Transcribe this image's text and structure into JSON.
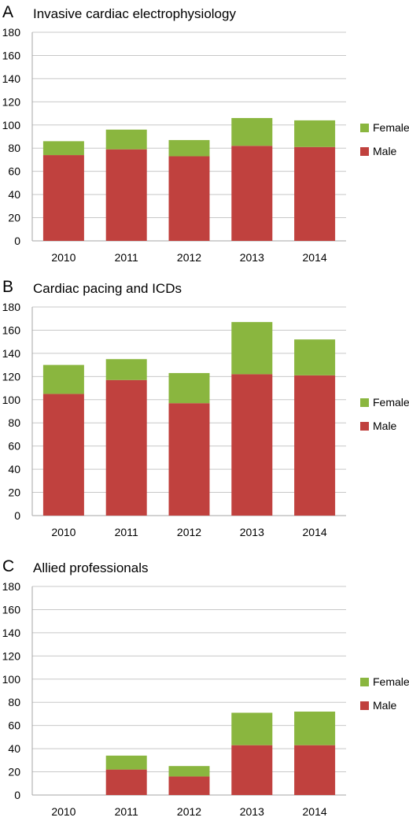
{
  "chart_data": [
    {
      "type": "bar",
      "stacked": true,
      "panel_label": "A",
      "title": "Invasive cardiac electrophysiology",
      "categories": [
        "2010",
        "2011",
        "2012",
        "2013",
        "2014"
      ],
      "series": [
        {
          "name": "Male",
          "color": "#c0413e",
          "values": [
            74,
            79,
            73,
            82,
            81
          ]
        },
        {
          "name": "Female",
          "color": "#8ab63f",
          "values": [
            12,
            17,
            14,
            24,
            23
          ]
        }
      ],
      "ylim": [
        0,
        180
      ],
      "yticks": [
        "0",
        "20",
        "40",
        "60",
        "80",
        "100",
        "120",
        "140",
        "160",
        "180"
      ],
      "grid": true,
      "legend": "right"
    },
    {
      "type": "bar",
      "stacked": true,
      "panel_label": "B",
      "title": "Cardiac pacing and ICDs",
      "categories": [
        "2010",
        "2011",
        "2012",
        "2013",
        "2014"
      ],
      "series": [
        {
          "name": "Male",
          "color": "#c0413e",
          "values": [
            105,
            117,
            97,
            122,
            121
          ]
        },
        {
          "name": "Female",
          "color": "#8ab63f",
          "values": [
            25,
            18,
            26,
            45,
            31
          ]
        }
      ],
      "ylim": [
        0,
        180
      ],
      "yticks": [
        "0",
        "20",
        "40",
        "60",
        "80",
        "100",
        "120",
        "140",
        "160",
        "180"
      ],
      "grid": true,
      "legend": "right"
    },
    {
      "type": "bar",
      "stacked": true,
      "panel_label": "C",
      "title": "Allied professionals",
      "categories": [
        "2010",
        "2011",
        "2012",
        "2013",
        "2014"
      ],
      "series": [
        {
          "name": "Male",
          "color": "#c0413e",
          "values": [
            0,
            22,
            16,
            43,
            43
          ]
        },
        {
          "name": "Female",
          "color": "#8ab63f",
          "values": [
            0,
            12,
            9,
            28,
            29
          ]
        }
      ],
      "ylim": [
        0,
        180
      ],
      "yticks": [
        "0",
        "20",
        "40",
        "60",
        "80",
        "100",
        "120",
        "140",
        "160",
        "180"
      ],
      "grid": true,
      "legend": "right"
    }
  ]
}
